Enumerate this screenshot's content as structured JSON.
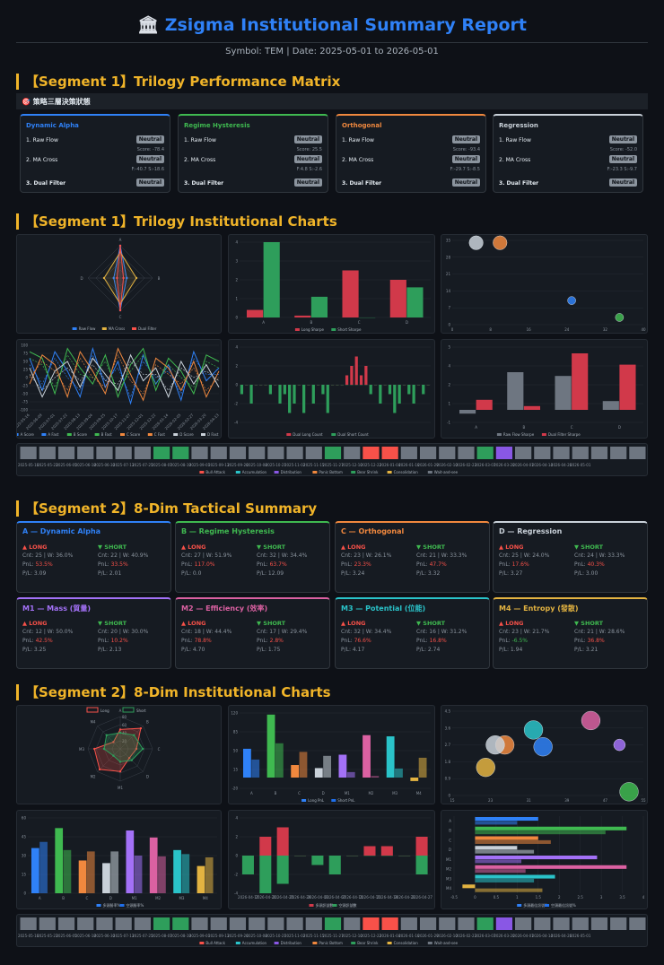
{
  "header": {
    "icon": "bank-icon",
    "title": "Zsigma Institutional Summary Report",
    "subtitle": "Symbol: TEM | Date: 2025-05-01 to 2026-05-01"
  },
  "sections": {
    "s1_matrix": "【Segment 1】Trilogy Performance Matrix",
    "s1_charts": "【Segment 1】Trilogy Institutional Charts",
    "s2_summary": "【Segment 2】8-Dim Tactical Summary",
    "s2_charts": "【Segment 2】8-Dim Institutional Charts"
  },
  "matrix_header": "🎯 策略三層決策狀態",
  "trilogy_cards": [
    {
      "title": "Dynamic Alpha",
      "color": "#2f81f7",
      "rows": [
        {
          "label": "1. Raw Flow",
          "badge": "Neutral"
        },
        {
          "label": "2. MA Cross",
          "badge": "Neutral"
        },
        {
          "label": "3. Dual Filter",
          "badge": "Neutral"
        }
      ],
      "score": "Score: -78.4",
      "fs": "F:-40.7 S:-18.6"
    },
    {
      "title": "Regime Hysteresis",
      "color": "#3fb950",
      "rows": [
        {
          "label": "1. Raw Flow",
          "badge": "Neutral"
        },
        {
          "label": "2. MA Cross",
          "badge": "Neutral"
        },
        {
          "label": "3. Dual Filter",
          "badge": "Neutral"
        }
      ],
      "score": "Score: 25.5",
      "fs": "F:4.8 S:-2.6"
    },
    {
      "title": "Orthogonal",
      "color": "#f0883e",
      "rows": [
        {
          "label": "1. Raw Flow",
          "badge": "Neutral"
        },
        {
          "label": "2. MA Cross",
          "badge": "Neutral"
        },
        {
          "label": "3. Dual Filter",
          "badge": "Neutral"
        }
      ],
      "score": "Score: -93.4",
      "fs": "F:-29.7 S:-8.5"
    },
    {
      "title": "Regression",
      "color": "#c9d1d9",
      "rows": [
        {
          "label": "1. Raw Flow",
          "badge": "Neutral"
        },
        {
          "label": "2. MA Cross",
          "badge": "Neutral"
        },
        {
          "label": "3. Dual Filter",
          "badge": "Neutral"
        }
      ],
      "score": "Score: -52.0",
      "fs": "F:-23.3 S:-9.7"
    }
  ],
  "tactical_cards": [
    {
      "title": "A — Dynamic Alpha",
      "color": "#2f81f7",
      "long": {
        "head": "▲ LONG",
        "cnt": "Cnt: 25 | W: 36.0%",
        "pnl": "53.5%",
        "pf": "P/L: 3.09"
      },
      "short": {
        "head": "▼ SHORT",
        "cnt": "Cnt: 22 | W: 40.9%",
        "pnl": "33.5%",
        "pf": "P/L: 2.01"
      }
    },
    {
      "title": "B — Regime Hysteresis",
      "color": "#3fb950",
      "long": {
        "head": "▲ LONG",
        "cnt": "Cnt: 27 | W: 51.9%",
        "pnl": "117.0%",
        "pf": "P/L: 0.0"
      },
      "short": {
        "head": "▼ SHORT",
        "cnt": "Cnt: 32 | W: 34.4%",
        "pnl": "63.7%",
        "pf": "P/L: 12.09"
      }
    },
    {
      "title": "C — Orthogonal",
      "color": "#f0883e",
      "long": {
        "head": "▲ LONG",
        "cnt": "Cnt: 23 | W: 26.1%",
        "pnl": "23.3%",
        "pf": "P/L: 3.24"
      },
      "short": {
        "head": "▼ SHORT",
        "cnt": "Cnt: 21 | W: 33.3%",
        "pnl": "47.7%",
        "pf": "P/L: 3.32"
      }
    },
    {
      "title": "D — Regression",
      "color": "#c9d1d9",
      "long": {
        "head": "▲ LONG",
        "cnt": "Cnt: 25 | W: 24.0%",
        "pnl": "17.6%",
        "pf": "P/L: 3.27"
      },
      "short": {
        "head": "▼ SHORT",
        "cnt": "Cnt: 24 | W: 33.3%",
        "pnl": "40.3%",
        "pf": "P/L: 3.00"
      }
    },
    {
      "title": "M1 — Mass (質量)",
      "color": "#a371f7",
      "long": {
        "head": "▲ LONG",
        "cnt": "Cnt: 12 | W: 50.0%",
        "pnl": "42.5%",
        "pf": "P/L: 3.25"
      },
      "short": {
        "head": "▼ SHORT",
        "cnt": "Cnt: 20 | W: 30.0%",
        "pnl": "10.2%",
        "pf": "P/L: 2.13"
      }
    },
    {
      "title": "M2 — Efficiency (效率)",
      "color": "#db61a2",
      "long": {
        "head": "▲ LONG",
        "cnt": "Cnt: 18 | W: 44.4%",
        "pnl": "78.8%",
        "pf": "P/L: 4.70"
      },
      "short": {
        "head": "▼ SHORT",
        "cnt": "Cnt: 17 | W: 29.4%",
        "pnl": "2.8%",
        "pf": "P/L: 1.75"
      }
    },
    {
      "title": "M3 — Potential (位能)",
      "color": "#2ac3c9",
      "long": {
        "head": "▲ LONG",
        "cnt": "Cnt: 32 | W: 34.4%",
        "pnl": "76.6%",
        "pf": "P/L: 4.17"
      },
      "short": {
        "head": "▼ SHORT",
        "cnt": "Cnt: 16 | W: 31.2%",
        "pnl": "16.8%",
        "pf": "P/L: 2.74"
      }
    },
    {
      "title": "M4 — Entropy (發散)",
      "color": "#e3b341",
      "long": {
        "head": "▲ LONG",
        "cnt": "Cnt: 23 | W: 21.7%",
        "pnl": "-6.5%",
        "pf": "P/L: 1.94"
      },
      "short": {
        "head": "▼ SHORT",
        "cnt": "Cnt: 21 | W: 28.6%",
        "pnl": "36.8%",
        "pf": "P/L: 3.21"
      }
    }
  ],
  "colors": {
    "long": "#d1394a",
    "short": "#2e9e5b",
    "blue": "#2f81f7",
    "orange": "#f0883e",
    "red": "#f85149",
    "grey": "#6e7681",
    "purple": "#8957e5"
  },
  "chart_data": [
    {
      "id": "radar-trilogy",
      "type": "radar",
      "axes": [
        "A",
        "B",
        "C",
        "D"
      ],
      "series": [
        {
          "name": "Raw Flow",
          "values": [
            1.0,
            0.2,
            1.0,
            0.2
          ]
        },
        {
          "name": "MA Cross",
          "values": [
            0.8,
            0.5,
            0.8,
            0.5
          ]
        },
        {
          "name": "Dual Filter",
          "values": [
            1.0,
            0.1,
            1.0,
            0.1
          ]
        }
      ]
    },
    {
      "id": "bar-sharpe",
      "type": "bar",
      "categories": [
        "A",
        "B",
        "C",
        "D"
      ],
      "series": [
        {
          "name": "Long Sharpe",
          "values": [
            0.4,
            0.1,
            2.5,
            2.0
          ]
        },
        {
          "name": "Short Sharpe",
          "values": [
            4.0,
            1.1,
            0.0,
            1.6
          ]
        }
      ],
      "ylim": [
        0,
        4
      ]
    },
    {
      "id": "scatter-trilogy",
      "type": "scatter",
      "xlim": [
        0,
        40
      ],
      "ylim": [
        0,
        35
      ],
      "points": [
        {
          "x": 5,
          "y": 34,
          "r": 6,
          "color": "#c9d1d9"
        },
        {
          "x": 10,
          "y": 34,
          "r": 6,
          "color": "#f0883e"
        },
        {
          "x": 25,
          "y": 10,
          "r": 3.5,
          "color": "#2f81f7"
        },
        {
          "x": 35,
          "y": 3,
          "r": 3.5,
          "color": "#3fb950"
        }
      ]
    },
    {
      "id": "line-scores",
      "type": "line",
      "ylim": [
        -100,
        100
      ],
      "x": [
        "2025-05-16",
        "2025-06-09",
        "2025-07-01",
        "2025-07-22",
        "2025-08-13",
        "2025-09-04",
        "2025-09-25",
        "2025-10-17",
        "2025-11-07",
        "2025-12-01",
        "2025-12-22",
        "2026-01-14",
        "2026-02-05",
        "2026-02-27",
        "2026-03-20",
        "2026-04-13"
      ],
      "series": [
        {
          "name": "A Score",
          "values": [
            60,
            -40,
            80,
            20,
            -60,
            90,
            -30,
            50,
            -80,
            70,
            -20,
            40,
            -70,
            80,
            -10,
            30
          ]
        },
        {
          "name": "A Fast",
          "values": [
            40,
            -20,
            60,
            0,
            -40,
            70,
            -10,
            30,
            -60,
            50,
            0,
            20,
            -50,
            60,
            10,
            10
          ]
        },
        {
          "name": "B Score",
          "values": [
            80,
            60,
            -50,
            90,
            30,
            -20,
            70,
            -60,
            40,
            90,
            -40,
            60,
            20,
            -50,
            70,
            50
          ]
        },
        {
          "name": "B Fast",
          "values": [
            60,
            40,
            -30,
            70,
            10,
            0,
            50,
            -40,
            20,
            70,
            -20,
            40,
            0,
            -30,
            50,
            30
          ]
        },
        {
          "name": "C Score",
          "values": [
            -20,
            70,
            40,
            -60,
            80,
            20,
            -50,
            90,
            10,
            -70,
            60,
            30,
            -40,
            50,
            -60,
            20
          ]
        },
        {
          "name": "C Fast",
          "values": [
            0,
            50,
            20,
            -40,
            60,
            0,
            -30,
            70,
            -10,
            -50,
            40,
            10,
            -20,
            30,
            -40,
            0
          ]
        },
        {
          "name": "D Score",
          "values": [
            30,
            -60,
            20,
            50,
            -30,
            60,
            10,
            -40,
            70,
            -10,
            30,
            -60,
            50,
            -20,
            40,
            -30
          ]
        },
        {
          "name": "D Fast",
          "values": [
            10,
            -40,
            0,
            30,
            -10,
            40,
            -10,
            -20,
            50,
            10,
            10,
            -40,
            30,
            0,
            20,
            -10
          ]
        }
      ]
    },
    {
      "id": "bar-dual-count",
      "type": "bar",
      "series": [
        {
          "name": "Dual Long Count",
          "values": [
            0,
            0,
            0,
            0,
            0,
            0,
            0,
            0,
            0,
            0,
            0,
            0,
            0,
            0,
            0,
            0,
            0,
            0,
            0,
            0,
            0,
            0,
            1,
            2,
            3,
            1,
            2,
            0,
            0,
            0,
            0,
            0,
            0,
            0,
            0,
            0,
            0,
            0,
            0,
            0
          ]
        },
        {
          "name": "Dual Short Count",
          "values": [
            -1,
            0,
            -2,
            0,
            0,
            0,
            -1,
            0,
            -2,
            -1,
            -3,
            -2,
            0,
            -3,
            0,
            -2,
            0,
            -1,
            -3,
            0,
            0,
            0,
            0,
            0,
            0,
            0,
            0,
            -1,
            0,
            -2,
            0,
            -1,
            -3,
            -2,
            0,
            -1,
            -2,
            0,
            -1,
            0
          ]
        }
      ],
      "ylim": [
        -4,
        4
      ]
    },
    {
      "id": "bar-flow-sharpe",
      "type": "bar",
      "categories": [
        "A",
        "B",
        "C",
        "D"
      ],
      "series": [
        {
          "name": "Raw Flow Sharpe",
          "values": [
            -0.3,
            3.0,
            2.7,
            0.7
          ]
        },
        {
          "name": "Dual Filter Sharpe",
          "values": [
            0.8,
            0.3,
            4.5,
            3.6
          ]
        }
      ],
      "ylim": [
        -1,
        5
      ]
    },
    {
      "id": "heat-trilogy",
      "type": "heatmap",
      "x": [
        "2025-05-16",
        "2025-05-23",
        "2025-06-05",
        "2025-06-18",
        "2025-06-30",
        "2025-07-13",
        "2025-07-25",
        "2025-08-07",
        "2025-08-19",
        "2025-09-01",
        "2025-09-13",
        "2025-09-26",
        "2025-10-08",
        "2025-10-21",
        "2025-11-02",
        "2025-11-15",
        "2025-11-27",
        "2025-12-10",
        "2025-12-22",
        "2026-01-04",
        "2026-01-16",
        "2026-01-29",
        "2026-02-10",
        "2026-02-23",
        "2026-03-07",
        "2026-03-20",
        "2026-04-01",
        "2026-04-14",
        "2026-04-26",
        "2026-05-01",
        "2026-05-01b",
        "2026-05-01c",
        "2026-05-01d"
      ],
      "cells": [
        "grey",
        "grey",
        "grey",
        "grey",
        "grey",
        "grey",
        "grey",
        "green",
        "green",
        "grey",
        "grey",
        "grey",
        "grey",
        "grey",
        "grey",
        "grey",
        "green",
        "grey",
        "red",
        "red",
        "grey",
        "grey",
        "grey",
        "grey",
        "green",
        "purple",
        "grey",
        "grey",
        "grey",
        "grey",
        "grey",
        "grey",
        "grey"
      ],
      "legend": [
        "Bull Attack",
        "Accumulation",
        "Distribution",
        "Panic Bottom",
        "Bear Shrink",
        "Consolidation",
        "Wait-and-see"
      ]
    },
    {
      "id": "radar-8dim",
      "type": "radar",
      "axes": [
        "A",
        "B",
        "C",
        "D",
        "M1",
        "M2",
        "M3",
        "M4"
      ],
      "series": [
        {
          "name": "Long",
          "values": [
            0.6,
            0.9,
            0.5,
            0.4,
            0.7,
            0.9,
            0.8,
            0.3
          ]
        },
        {
          "name": "Short",
          "values": [
            0.5,
            0.6,
            0.7,
            0.5,
            0.4,
            0.3,
            0.5,
            0.6
          ]
        }
      ],
      "rings": [
        "20",
        "40",
        "60",
        "80"
      ]
    },
    {
      "id": "bar-8dim-pnl",
      "type": "bar",
      "categories": [
        "A",
        "B",
        "C",
        "D",
        "M1",
        "M2",
        "M3",
        "M4"
      ],
      "series": [
        {
          "name": "Long PnL",
          "values": [
            53.5,
            117.0,
            23.3,
            17.6,
            42.5,
            78.8,
            76.6,
            -6.5
          ]
        },
        {
          "name": "Short PnL",
          "values": [
            33.5,
            63.7,
            47.7,
            40.3,
            10.2,
            2.8,
            16.8,
            36.8
          ]
        }
      ],
      "ylim": [
        -20,
        120
      ]
    },
    {
      "id": "scatter-8dim",
      "type": "scatter",
      "xlim": [
        15,
        55
      ],
      "ylim": [
        0,
        4.5
      ],
      "points": [
        {
          "x": 32,
          "y": 3.5,
          "r": 8,
          "color": "#2ac3c9"
        },
        {
          "x": 44,
          "y": 4.0,
          "r": 8,
          "color": "#db61a2"
        },
        {
          "x": 26,
          "y": 2.7,
          "r": 8,
          "color": "#f0883e"
        },
        {
          "x": 24,
          "y": 2.7,
          "r": 8,
          "color": "#c9d1d9"
        },
        {
          "x": 34,
          "y": 2.6,
          "r": 8,
          "color": "#2f81f7"
        },
        {
          "x": 50,
          "y": 2.7,
          "r": 5,
          "color": "#a371f7"
        },
        {
          "x": 22,
          "y": 1.5,
          "r": 8,
          "color": "#e3b341"
        },
        {
          "x": 52,
          "y": 0.2,
          "r": 8,
          "color": "#3fb950"
        }
      ]
    },
    {
      "id": "bar-8dim-win",
      "type": "bar",
      "categories": [
        "A",
        "B",
        "C",
        "D",
        "M1",
        "M2",
        "M3",
        "M4"
      ],
      "series": [
        {
          "name": "多頭勝率%",
          "values": [
            36.0,
            51.9,
            26.1,
            24.0,
            50.0,
            44.4,
            34.4,
            21.7
          ]
        },
        {
          "name": "空頭勝率%",
          "values": [
            40.9,
            34.4,
            33.3,
            33.3,
            30.0,
            29.4,
            31.2,
            28.6
          ]
        }
      ],
      "ylim": [
        0,
        60
      ]
    },
    {
      "id": "bar-8dim-signal",
      "type": "bar",
      "x": [
        "2026-04-17",
        "2026-04-21",
        "2026-04-25",
        "2026-04-29",
        "2026-04-03",
        "2026-04-07",
        "2026-04-11",
        "2026-04-15",
        "2026-04-19",
        "2026-04-23",
        "2026-04-27"
      ],
      "series": [
        {
          "name": "多頭訊號數",
          "values": [
            0,
            2,
            3,
            0,
            0,
            0,
            0,
            1,
            1,
            0,
            2
          ]
        },
        {
          "name": "空頭訊號數",
          "values": [
            -2,
            -4,
            -3,
            0,
            -1,
            -2,
            0,
            0,
            0,
            0,
            -2
          ]
        }
      ],
      "ylim": [
        -4,
        4
      ]
    },
    {
      "id": "hbar-8dim",
      "type": "bar",
      "categories": [
        "A",
        "B",
        "C",
        "D",
        "M1",
        "M2",
        "M3",
        "M4"
      ],
      "series": [
        {
          "name": "多頭最佳訊號%",
          "values": [
            1.5,
            3.6,
            1.5,
            1.0,
            2.9,
            3.6,
            1.9,
            -0.3
          ]
        },
        {
          "name": "空頭最佳訊號%",
          "values": [
            1.0,
            3.1,
            1.8,
            1.4,
            1.1,
            1.2,
            1.4,
            1.6
          ]
        }
      ],
      "xlim": [
        -0.5,
        4.0
      ]
    },
    {
      "id": "heat-8dim",
      "type": "heatmap",
      "cells": [
        "grey",
        "grey",
        "grey",
        "grey",
        "grey",
        "grey",
        "grey",
        "green",
        "green",
        "grey",
        "grey",
        "grey",
        "grey",
        "grey",
        "grey",
        "grey",
        "green",
        "grey",
        "red",
        "red",
        "grey",
        "grey",
        "grey",
        "grey",
        "green",
        "purple",
        "grey",
        "grey",
        "grey",
        "grey",
        "grey",
        "grey",
        "grey"
      ],
      "legend": [
        "Bull Attack",
        "Accumulation",
        "Distribution",
        "Panic Bottom",
        "Bear Shrink",
        "Consolidation",
        "Wait-and-see"
      ]
    }
  ]
}
